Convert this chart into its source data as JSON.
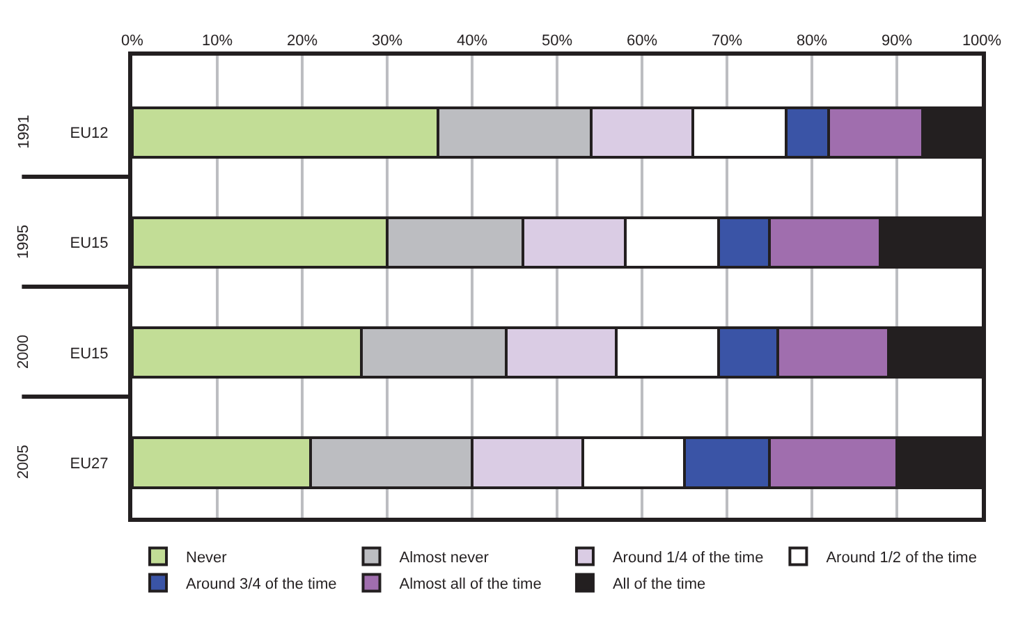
{
  "chart_data": {
    "type": "bar",
    "orientation": "horizontal",
    "stacked": true,
    "categories": [
      "EU12",
      "EU15",
      "EU15",
      "EU27"
    ],
    "annotations": [
      "1991",
      "1995",
      "2000",
      "2005"
    ],
    "series": [
      {
        "name": "Never",
        "color": "#c2dd96",
        "values": [
          36,
          30,
          27,
          21
        ]
      },
      {
        "name": "Almost never",
        "color": "#bcbdc1",
        "values": [
          18,
          16,
          17,
          19
        ]
      },
      {
        "name": "Around 1/4 of the time",
        "color": "#dacce4",
        "values": [
          12,
          12,
          13,
          13
        ]
      },
      {
        "name": "Around 1/2 of the time",
        "color": "#ffffff",
        "values": [
          11,
          11,
          12,
          12
        ]
      },
      {
        "name": "Around 3/4 of the time",
        "color": "#3a54a6",
        "values": [
          5,
          6,
          7,
          10
        ]
      },
      {
        "name": "Almost all of the time",
        "color": "#a06eae",
        "values": [
          11,
          13,
          13,
          15
        ]
      },
      {
        "name": "All of the time",
        "color": "#231f20",
        "values": [
          7,
          12,
          11,
          10
        ]
      }
    ],
    "xlim": [
      0,
      100
    ],
    "xticks": [
      {
        "value": 0,
        "label": "0%"
      },
      {
        "value": 10,
        "label": "10%"
      },
      {
        "value": 20,
        "label": "20%"
      },
      {
        "value": 30,
        "label": "30%"
      },
      {
        "value": 40,
        "label": "40%"
      },
      {
        "value": 50,
        "label": "50%"
      },
      {
        "value": 60,
        "label": "60%"
      },
      {
        "value": 70,
        "label": "70%"
      },
      {
        "value": 80,
        "label": "80%"
      },
      {
        "value": 90,
        "label": "90%"
      },
      {
        "value": 100,
        "label": "100%"
      }
    ],
    "grid": "x",
    "legend": "bottom"
  }
}
